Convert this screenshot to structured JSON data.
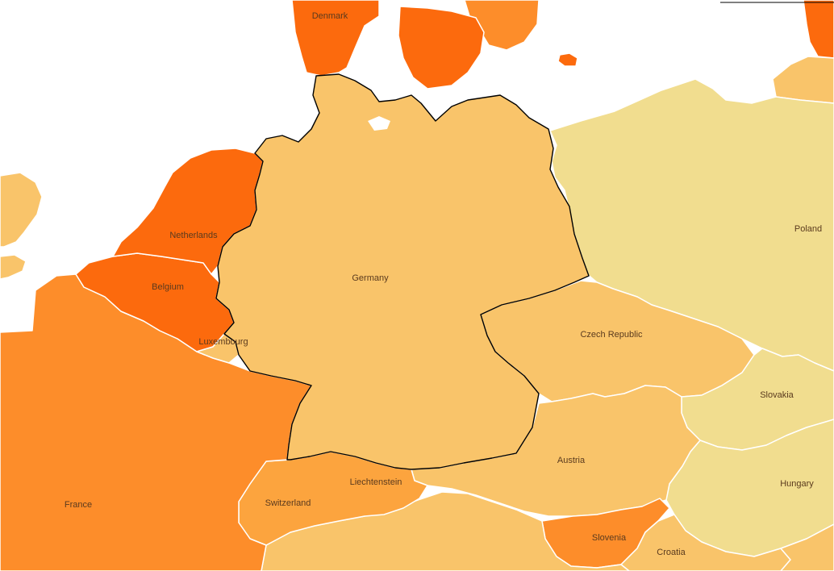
{
  "map": {
    "colors": {
      "very_high": "#fc6a0d",
      "high": "#fd8d2a",
      "mid_high": "#fca43e",
      "mid": "#f9c46a",
      "low": "#f5cf7c",
      "very_low": "#f1dd8f",
      "sea": "#ffffff",
      "focus_outline": "#000000"
    },
    "labels": {
      "denmark": "Denmark",
      "netherlands": "Netherlands",
      "belgium": "Belgium",
      "luxembourg": "Luxembourg",
      "germany": "Germany",
      "poland": "Poland",
      "czech": "Czech Republic",
      "slovakia": "Slovakia",
      "austria": "Austria",
      "hungary": "Hungary",
      "france": "France",
      "switzerland": "Switzerland",
      "liechtenstein": "Liechtenstein",
      "slovenia": "Slovenia",
      "croatia": "Croatia"
    }
  }
}
